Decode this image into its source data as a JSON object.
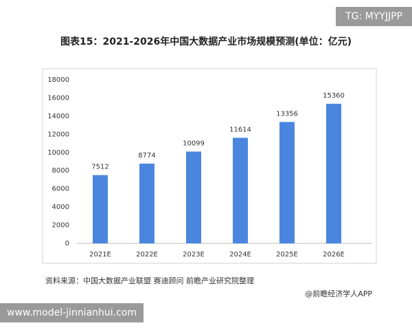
{
  "watermark_top": "TG: MYYJJPP",
  "watermark_bottom": "www.model-jinnianhui.com",
  "chart_data": {
    "type": "bar",
    "title": "图表15：2021-2026年中国大数据产业市场规模预测(单位：亿元)",
    "categories": [
      "2021E",
      "2022E",
      "2023E",
      "2024E",
      "2025E",
      "2026E"
    ],
    "values": [
      7512,
      8774,
      10099,
      11614,
      13356,
      15360
    ],
    "color": "#4a86e0",
    "ylim": [
      0,
      18000
    ],
    "yticks": [
      0,
      2000,
      4000,
      6000,
      8000,
      10000,
      12000,
      14000,
      16000,
      18000
    ],
    "grid": false,
    "source": "资料来源：中国大数据产业联盟 赛迪顾问 前瞻产业研究院整理",
    "credit": "@前瞻经济学人APP"
  }
}
